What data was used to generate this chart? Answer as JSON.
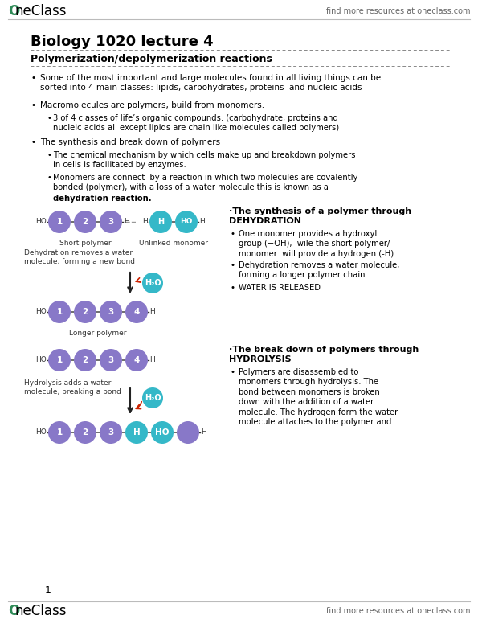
{
  "bg_color": "#ffffff",
  "header_logo_text": "OneClass",
  "header_right_text": "find more resources at oneclass.com",
  "footer_logo_text": "OneClass",
  "footer_right_text": "find more resources at oneclass.com",
  "page_number": "1",
  "title": "Biology 1020 lecture 4",
  "section_title": "Polymerization/depolymerization reactions",
  "circle_color": "#8878c8",
  "circle_teal": "#35b8c8",
  "arrow_color": "#222222",
  "h2o_color": "#35b8c8",
  "red_arrow": "#cc2200",
  "diagram_label_short": "Short polymer",
  "diagram_label_unlinked": "Unlinked monomer",
  "diagram_label_longer": "Longer polymer",
  "diagram_label_dehydration": "Dehydration removes a water\nmolecule, forming a new bond",
  "diagram_label_hydrolysis": "Hydrolysis adds a water\nmolecule, breaking a bond",
  "dehydration_title1": "·The synthesis of a polymer through",
  "dehydration_title2": "DEHYDRATION",
  "dehydration_bullets": [
    "One monomer provides a hydroxyl\ngroup (−OH),  wile the short polymer/\nmonomer  will provide a hydrogen (-H).",
    "Dehydration removes a water molecule,\nforming a longer polymer chain.",
    "WATER IS RELEASED"
  ],
  "hydrolysis_title1": "·The break down of polymers through",
  "hydrolysis_title2": "HYDROLYSIS",
  "hydrolysis_bullets": [
    "Polymers are disassembled to\nmonomers through hydrolysis. The\nbond between monomers is broken\ndown with the addition of a water\nmolecule. The hydrogen form the water\nmolecule attaches to the polymer and"
  ]
}
